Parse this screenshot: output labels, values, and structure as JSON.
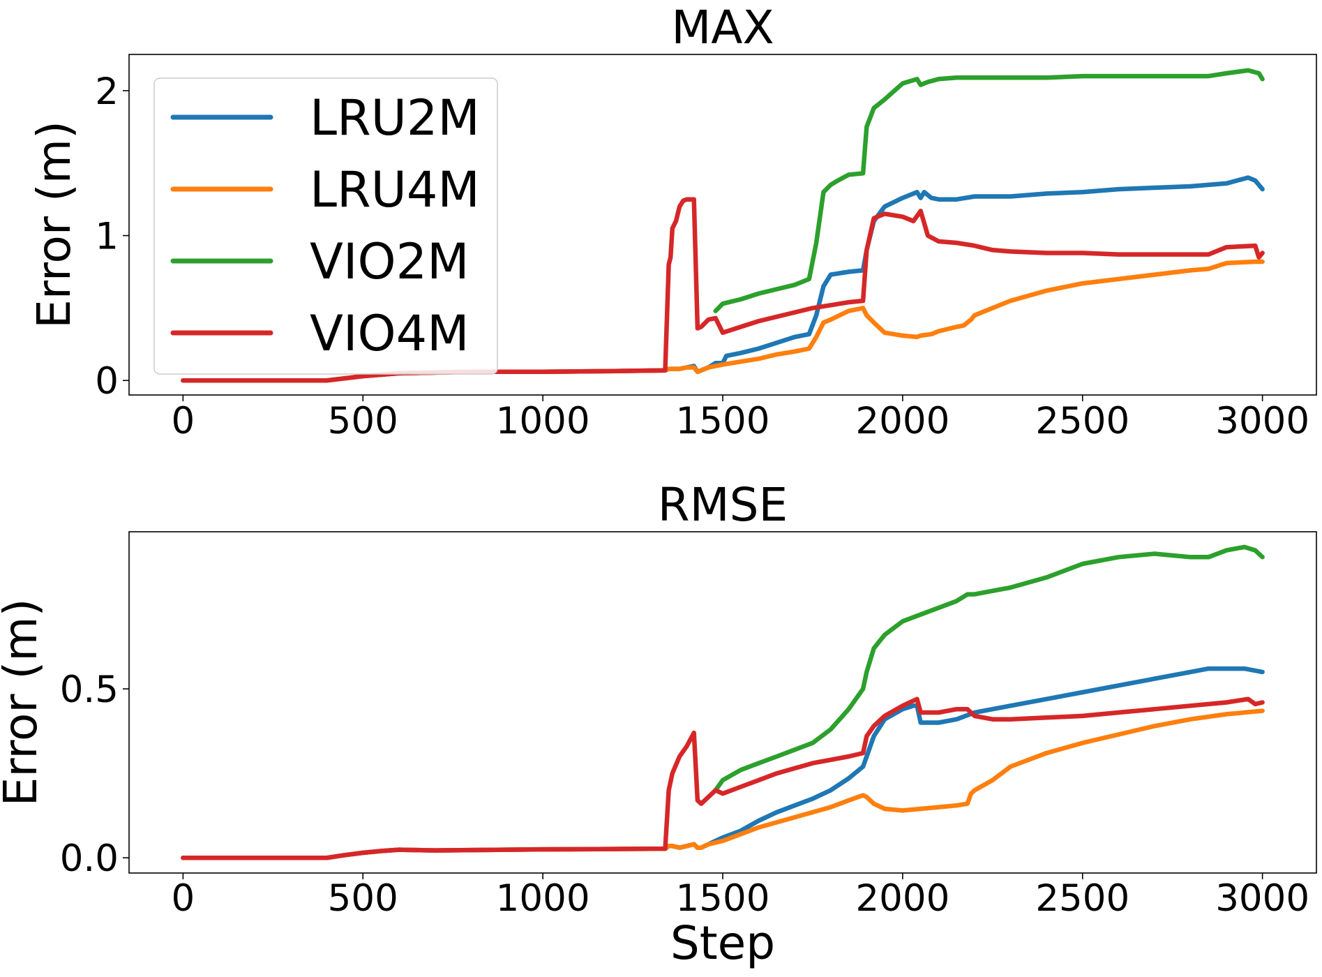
{
  "chart_data": [
    {
      "type": "line",
      "title": "MAX",
      "xlabel": "",
      "ylabel": "Error (m)",
      "xlim": [
        -150,
        3150
      ],
      "ylim": [
        -0.1,
        2.25
      ],
      "xticks": [
        0,
        500,
        1000,
        1500,
        2000,
        2500,
        3000
      ],
      "xtick_labels": [
        "0",
        "500",
        "1000",
        "1500",
        "2000",
        "2500",
        "3000"
      ],
      "yticks": [
        0,
        1,
        2
      ],
      "ytick_labels": [
        "0",
        "1",
        "2"
      ],
      "grid": false,
      "legend": "upper-left",
      "series": [
        {
          "name": "LRU2M",
          "color": "#1f77b4",
          "x": [
            0,
            400,
            500,
            600,
            800,
            1000,
            1200,
            1340,
            1350,
            1360,
            1380,
            1400,
            1420,
            1430,
            1440,
            1460,
            1480,
            1500,
            1510,
            1550,
            1600,
            1650,
            1700,
            1740,
            1760,
            1780,
            1800,
            1850,
            1890,
            1900,
            1920,
            1950,
            2000,
            2040,
            2050,
            2060,
            2080,
            2100,
            2150,
            2200,
            2300,
            2400,
            2500,
            2600,
            2700,
            2800,
            2900,
            2960,
            2980,
            3000
          ],
          "y": [
            0,
            0,
            0.03,
            0.05,
            0.06,
            0.06,
            0.065,
            0.07,
            0.08,
            0.08,
            0.08,
            0.09,
            0.1,
            0.06,
            0.07,
            0.09,
            0.12,
            0.12,
            0.17,
            0.19,
            0.22,
            0.26,
            0.3,
            0.32,
            0.45,
            0.65,
            0.73,
            0.75,
            0.76,
            0.9,
            1.1,
            1.2,
            1.26,
            1.3,
            1.26,
            1.3,
            1.26,
            1.25,
            1.25,
            1.27,
            1.27,
            1.29,
            1.3,
            1.32,
            1.33,
            1.34,
            1.36,
            1.4,
            1.38,
            1.32
          ]
        },
        {
          "name": "LRU4M",
          "color": "#ff7f0e",
          "x": [
            0,
            400,
            500,
            600,
            800,
            1000,
            1200,
            1340,
            1350,
            1360,
            1380,
            1400,
            1420,
            1430,
            1440,
            1460,
            1500,
            1550,
            1600,
            1650,
            1700,
            1740,
            1760,
            1780,
            1800,
            1850,
            1890,
            1900,
            1920,
            1950,
            2000,
            2040,
            2050,
            2080,
            2100,
            2150,
            2170,
            2190,
            2200,
            2250,
            2300,
            2400,
            2500,
            2600,
            2700,
            2800,
            2850,
            2900,
            2980,
            3000
          ],
          "y": [
            0,
            0,
            0.03,
            0.05,
            0.06,
            0.06,
            0.065,
            0.07,
            0.08,
            0.08,
            0.08,
            0.09,
            0.09,
            0.06,
            0.07,
            0.09,
            0.11,
            0.13,
            0.15,
            0.18,
            0.2,
            0.22,
            0.3,
            0.4,
            0.42,
            0.48,
            0.5,
            0.45,
            0.4,
            0.33,
            0.31,
            0.3,
            0.31,
            0.32,
            0.34,
            0.37,
            0.38,
            0.42,
            0.45,
            0.5,
            0.55,
            0.62,
            0.67,
            0.7,
            0.73,
            0.76,
            0.77,
            0.81,
            0.82,
            0.82
          ]
        },
        {
          "name": "VIO2M",
          "color": "#2ca02c",
          "x": [
            1480,
            1500,
            1550,
            1600,
            1650,
            1700,
            1740,
            1760,
            1780,
            1800,
            1820,
            1850,
            1890,
            1900,
            1920,
            1950,
            2000,
            2040,
            2050,
            2070,
            2100,
            2150,
            2200,
            2300,
            2400,
            2500,
            2600,
            2700,
            2800,
            2850,
            2900,
            2960,
            2990,
            3000
          ],
          "y": [
            0.48,
            0.53,
            0.56,
            0.6,
            0.63,
            0.66,
            0.7,
            0.95,
            1.3,
            1.35,
            1.38,
            1.42,
            1.43,
            1.75,
            1.88,
            1.94,
            2.05,
            2.08,
            2.04,
            2.06,
            2.08,
            2.09,
            2.09,
            2.09,
            2.09,
            2.1,
            2.1,
            2.1,
            2.1,
            2.1,
            2.12,
            2.14,
            2.12,
            2.08
          ]
        },
        {
          "name": "VIO4M",
          "color": "#d62728",
          "x": [
            0,
            400,
            500,
            600,
            800,
            1000,
            1200,
            1340,
            1350,
            1355,
            1360,
            1370,
            1380,
            1390,
            1400,
            1410,
            1420,
            1430,
            1440,
            1460,
            1480,
            1500,
            1550,
            1600,
            1650,
            1700,
            1750,
            1800,
            1850,
            1890,
            1900,
            1920,
            1950,
            2000,
            2030,
            2050,
            2070,
            2100,
            2150,
            2200,
            2250,
            2300,
            2400,
            2500,
            2600,
            2700,
            2800,
            2850,
            2900,
            2980,
            2990,
            3000
          ],
          "y": [
            0,
            0,
            0.03,
            0.05,
            0.06,
            0.06,
            0.065,
            0.07,
            0.8,
            0.85,
            1.05,
            1.1,
            1.2,
            1.24,
            1.25,
            1.25,
            1.25,
            0.36,
            0.37,
            0.42,
            0.43,
            0.33,
            0.37,
            0.41,
            0.44,
            0.47,
            0.5,
            0.52,
            0.54,
            0.55,
            0.9,
            1.12,
            1.15,
            1.13,
            1.1,
            1.17,
            1.0,
            0.96,
            0.95,
            0.93,
            0.9,
            0.89,
            0.88,
            0.88,
            0.87,
            0.87,
            0.87,
            0.87,
            0.92,
            0.93,
            0.85,
            0.88
          ]
        }
      ]
    },
    {
      "type": "line",
      "title": "RMSE",
      "xlabel": "Step",
      "ylabel": "Error (m)",
      "xlim": [
        -150,
        3150
      ],
      "ylim": [
        -0.045,
        0.965
      ],
      "xticks": [
        0,
        500,
        1000,
        1500,
        2000,
        2500,
        3000
      ],
      "xtick_labels": [
        "0",
        "500",
        "1000",
        "1500",
        "2000",
        "2500",
        "3000"
      ],
      "yticks": [
        0.0,
        0.5
      ],
      "ytick_labels": [
        "0.0",
        "0.5"
      ],
      "grid": false,
      "legend": "none",
      "series": [
        {
          "name": "LRU2M",
          "color": "#1f77b4",
          "x": [
            0,
            400,
            450,
            500,
            550,
            600,
            700,
            800,
            1000,
            1200,
            1340,
            1350,
            1360,
            1380,
            1400,
            1420,
            1430,
            1440,
            1460,
            1500,
            1550,
            1600,
            1650,
            1700,
            1750,
            1800,
            1850,
            1890,
            1900,
            1920,
            1950,
            2000,
            2030,
            2040,
            2050,
            2100,
            2150,
            2200,
            2300,
            2400,
            2500,
            2600,
            2700,
            2800,
            2850,
            2900,
            2950,
            3000
          ],
          "y": [
            0,
            0,
            0.008,
            0.015,
            0.02,
            0.024,
            0.022,
            0.023,
            0.025,
            0.026,
            0.027,
            0.035,
            0.035,
            0.03,
            0.035,
            0.04,
            0.03,
            0.03,
            0.04,
            0.06,
            0.08,
            0.11,
            0.135,
            0.155,
            0.175,
            0.2,
            0.235,
            0.27,
            0.3,
            0.36,
            0.41,
            0.44,
            0.45,
            0.45,
            0.4,
            0.4,
            0.41,
            0.43,
            0.45,
            0.47,
            0.49,
            0.51,
            0.53,
            0.55,
            0.56,
            0.56,
            0.56,
            0.55
          ]
        },
        {
          "name": "LRU4M",
          "color": "#ff7f0e",
          "x": [
            0,
            400,
            450,
            500,
            550,
            600,
            700,
            800,
            1000,
            1200,
            1340,
            1350,
            1360,
            1380,
            1400,
            1420,
            1430,
            1440,
            1460,
            1500,
            1550,
            1600,
            1650,
            1700,
            1750,
            1800,
            1850,
            1890,
            1900,
            1920,
            1950,
            2000,
            2050,
            2100,
            2150,
            2180,
            2190,
            2200,
            2250,
            2300,
            2400,
            2500,
            2600,
            2700,
            2800,
            2900,
            3000
          ],
          "y": [
            0,
            0,
            0.008,
            0.015,
            0.02,
            0.024,
            0.022,
            0.023,
            0.025,
            0.026,
            0.027,
            0.035,
            0.035,
            0.03,
            0.035,
            0.04,
            0.03,
            0.03,
            0.04,
            0.05,
            0.07,
            0.09,
            0.105,
            0.12,
            0.135,
            0.15,
            0.17,
            0.185,
            0.18,
            0.16,
            0.145,
            0.14,
            0.145,
            0.15,
            0.155,
            0.16,
            0.19,
            0.2,
            0.23,
            0.27,
            0.31,
            0.34,
            0.365,
            0.39,
            0.41,
            0.425,
            0.435
          ]
        },
        {
          "name": "VIO2M",
          "color": "#2ca02c",
          "x": [
            1480,
            1500,
            1550,
            1600,
            1650,
            1700,
            1750,
            1800,
            1850,
            1890,
            1900,
            1920,
            1950,
            2000,
            2050,
            2100,
            2150,
            2180,
            2200,
            2250,
            2300,
            2400,
            2500,
            2600,
            2700,
            2800,
            2850,
            2900,
            2950,
            2980,
            3000
          ],
          "y": [
            0.2,
            0.23,
            0.26,
            0.28,
            0.3,
            0.32,
            0.34,
            0.38,
            0.44,
            0.5,
            0.55,
            0.62,
            0.66,
            0.7,
            0.72,
            0.74,
            0.76,
            0.78,
            0.78,
            0.79,
            0.8,
            0.83,
            0.87,
            0.89,
            0.9,
            0.89,
            0.89,
            0.91,
            0.92,
            0.91,
            0.89
          ]
        },
        {
          "name": "VIO4M",
          "color": "#d62728",
          "x": [
            0,
            400,
            450,
            500,
            550,
            600,
            700,
            800,
            1000,
            1200,
            1340,
            1350,
            1360,
            1380,
            1400,
            1420,
            1430,
            1440,
            1460,
            1480,
            1500,
            1550,
            1600,
            1650,
            1700,
            1750,
            1800,
            1850,
            1890,
            1900,
            1920,
            1950,
            2000,
            2040,
            2050,
            2080,
            2100,
            2150,
            2180,
            2200,
            2250,
            2300,
            2400,
            2500,
            2600,
            2700,
            2800,
            2900,
            2960,
            2980,
            3000
          ],
          "y": [
            0,
            0,
            0.008,
            0.015,
            0.02,
            0.024,
            0.022,
            0.023,
            0.025,
            0.026,
            0.027,
            0.2,
            0.25,
            0.3,
            0.33,
            0.37,
            0.17,
            0.16,
            0.18,
            0.2,
            0.19,
            0.21,
            0.23,
            0.25,
            0.265,
            0.28,
            0.29,
            0.3,
            0.31,
            0.36,
            0.39,
            0.42,
            0.45,
            0.47,
            0.43,
            0.43,
            0.43,
            0.44,
            0.44,
            0.42,
            0.41,
            0.41,
            0.415,
            0.42,
            0.43,
            0.44,
            0.45,
            0.46,
            0.47,
            0.455,
            0.46
          ]
        }
      ]
    }
  ]
}
